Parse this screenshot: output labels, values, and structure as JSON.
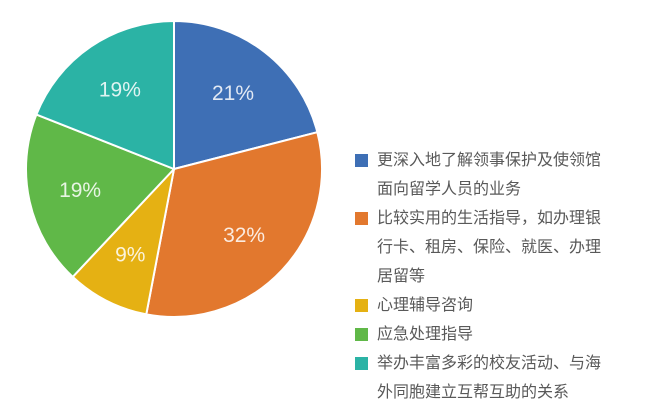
{
  "page": {
    "background": "#FFFFFF"
  },
  "chart_data": {
    "type": "pie",
    "title": "",
    "start_angle_deg": 0,
    "direction": "clockwise",
    "legend_position": "right",
    "pct_label_color": "#FFFFFF",
    "slice_gap_color": "#FFFFFF",
    "slices": [
      {
        "label": "更深入地了解领事保护及使领馆面向留学人员的业务",
        "value": 21,
        "pct_label": "21%",
        "color": "#3E6FB5"
      },
      {
        "label": "比较实用的生活指导，如办理银行卡、租房、保险、就医、办理居留等",
        "value": 32,
        "pct_label": "32%",
        "color": "#E2782E"
      },
      {
        "label": "心理辅导咨询",
        "value": 9,
        "pct_label": "9%",
        "color": "#E5B113"
      },
      {
        "label": "应急处理指导",
        "value": 19,
        "pct_label": "19%",
        "color": "#60B848"
      },
      {
        "label": "举办丰富多彩的校友活动、与海外同胞建立互帮互助的关系",
        "value": 19,
        "pct_label": "19%",
        "color": "#2BB3A5"
      }
    ]
  },
  "legend": {
    "items": [
      {
        "color": "#3E6FB5",
        "lines": [
          "更深入地了解领事保护及使领馆",
          "面向留学人员的业务"
        ]
      },
      {
        "color": "#E2782E",
        "lines": [
          "比较实用的生活指导，如办理银",
          "行卡、租房、保险、就医、办理",
          "居留等"
        ]
      },
      {
        "color": "#E5B113",
        "lines": [
          "心理辅导咨询"
        ]
      },
      {
        "color": "#60B848",
        "lines": [
          "应急处理指导"
        ]
      },
      {
        "color": "#2BB3A5",
        "lines": [
          "举办丰富多彩的校友活动、与海",
          "外同胞建立互帮互助的关系"
        ]
      }
    ]
  }
}
